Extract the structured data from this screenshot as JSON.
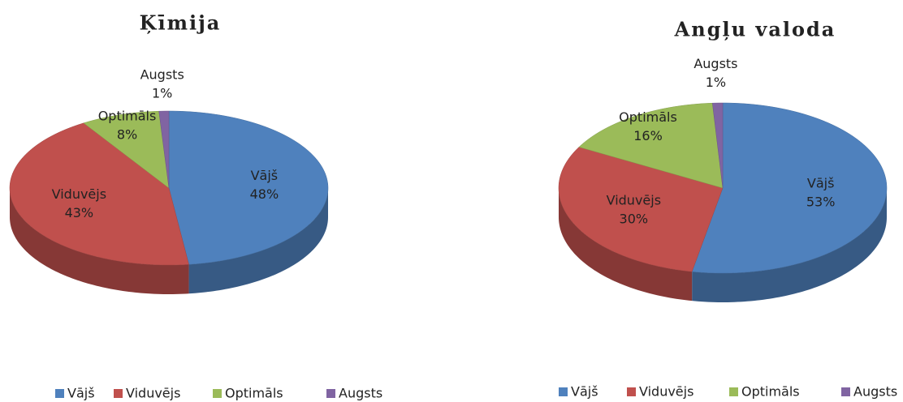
{
  "chart_data": [
    {
      "type": "pie",
      "title": "Ķīmija",
      "categories": [
        "Vājš",
        "Viduvējs",
        "Optimāls",
        "Augsts"
      ],
      "values": [
        48,
        43,
        8,
        1
      ],
      "value_labels": [
        "48%",
        "43%",
        "8%",
        "1%"
      ],
      "colors": [
        "#4f81bd",
        "#c0504d",
        "#9bbb59",
        "#8064a2"
      ],
      "legend": "bottom"
    },
    {
      "type": "pie",
      "title": "Angļu valoda",
      "categories": [
        "Vājš",
        "Viduvējs",
        "Optimāls",
        "Augsts"
      ],
      "values": [
        53,
        30,
        16,
        1
      ],
      "value_labels": [
        "53%",
        "30%",
        "16%",
        "1%"
      ],
      "colors": [
        "#4f81bd",
        "#c0504d",
        "#9bbb59",
        "#8064a2"
      ],
      "legend": "bottom"
    }
  ]
}
